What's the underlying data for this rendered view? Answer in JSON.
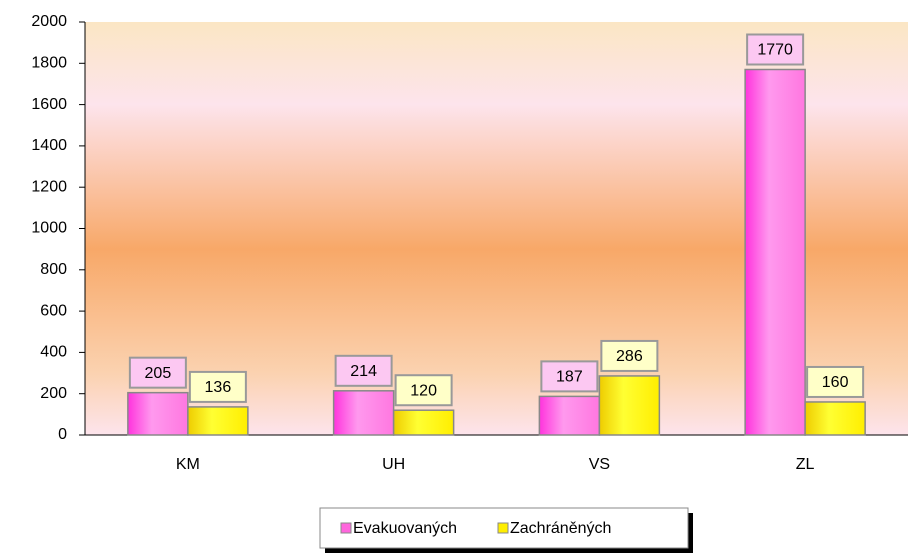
{
  "chart_data": {
    "type": "bar",
    "categories": [
      "KM",
      "UH",
      "VS",
      "ZL"
    ],
    "series": [
      {
        "name": "Evakuovaných",
        "color": "#ff66dd",
        "values": [
          205,
          214,
          187,
          1770
        ]
      },
      {
        "name": "Zachráněných",
        "color": "#ffee00",
        "values": [
          136,
          120,
          286,
          160
        ]
      }
    ],
    "ylim": [
      0,
      2000
    ],
    "yticks": [
      0,
      200,
      400,
      600,
      800,
      1000,
      1200,
      1400,
      1600,
      1800,
      2000
    ],
    "legend": "bottom"
  }
}
